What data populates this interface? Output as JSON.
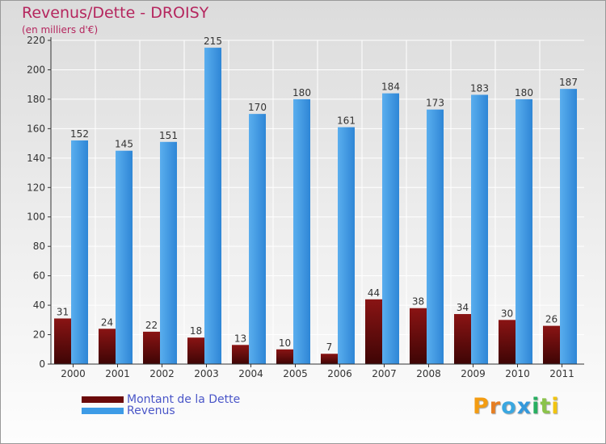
{
  "header": {
    "title": "Revenus/Dette - DROISY",
    "subtitle": "(en milliers d'€)"
  },
  "legend": {
    "items": [
      {
        "label": "Montant de la Dette",
        "color": "#6b0a0a"
      },
      {
        "label": "Revenus",
        "color": "#3d9be6"
      }
    ]
  },
  "logo": {
    "letters": [
      {
        "char": "P",
        "color": "#f39c12"
      },
      {
        "char": "r",
        "color": "#e67e22"
      },
      {
        "char": "o",
        "color": "#3aa7e0"
      },
      {
        "char": "x",
        "color": "#3498db"
      },
      {
        "char": "i",
        "color": "#27ae60"
      },
      {
        "char": "t",
        "color": "#8bc34a"
      },
      {
        "char": "i",
        "color": "#f1c40f"
      }
    ]
  },
  "chart_data": {
    "type": "bar",
    "title": "Revenus/Dette - DROISY",
    "subtitle": "(en milliers d'€)",
    "categories": [
      "2000",
      "2001",
      "2002",
      "2003",
      "2004",
      "2005",
      "2006",
      "2007",
      "2008",
      "2009",
      "2010",
      "2011"
    ],
    "series": [
      {
        "name": "Montant de la Dette",
        "color": "#6b0a0a",
        "values": [
          31,
          24,
          22,
          18,
          13,
          10,
          7,
          44,
          38,
          34,
          30,
          26
        ]
      },
      {
        "name": "Revenus",
        "color": "#3d9be6",
        "values": [
          152,
          145,
          151,
          215,
          170,
          180,
          161,
          184,
          173,
          183,
          180,
          187
        ]
      }
    ],
    "ylim": [
      0,
      220
    ],
    "yticks": [
      0,
      20,
      40,
      60,
      80,
      100,
      120,
      140,
      160,
      180,
      200,
      220
    ],
    "grid": true,
    "legend_position": "bottom-left",
    "xlabel": "",
    "ylabel": ""
  }
}
